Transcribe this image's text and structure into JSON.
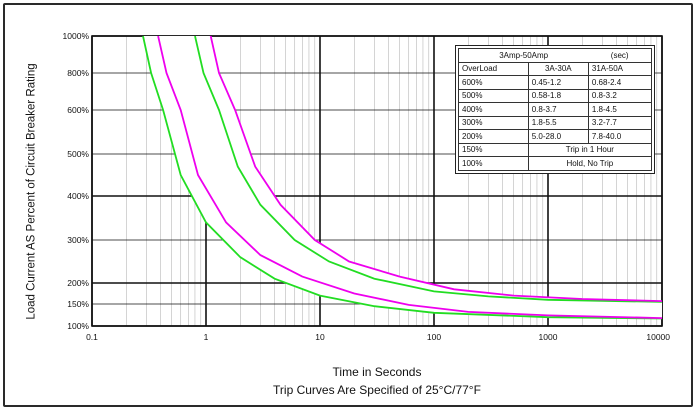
{
  "chart_data": {
    "type": "line",
    "xlabel": "Time in Seconds",
    "ylabel": "Load Current AS Percent of Circuit Breaker Rating",
    "footnote": "Trip Curves Are Specified of 25°C/77°F",
    "x_scale": "log",
    "xlim": [
      0.1,
      10000
    ],
    "x_ticks": [
      "0.1",
      "1",
      "10",
      "100",
      "1000",
      "10000"
    ],
    "ylim": [
      100,
      1000
    ],
    "y_ticks": [
      "1000%",
      "800%",
      "600%",
      "500%",
      "400%",
      "300%",
      "200%",
      "150%",
      "100%"
    ],
    "grid": true,
    "series": [
      {
        "color": "#22dd22",
        "points": [
          [
            0.28,
            1000
          ],
          [
            0.33,
            800
          ],
          [
            0.42,
            600
          ],
          [
            0.6,
            450
          ],
          [
            1.0,
            340
          ],
          [
            2.0,
            260
          ],
          [
            4.0,
            210
          ],
          [
            10,
            170
          ],
          [
            30,
            145
          ],
          [
            100,
            130
          ],
          [
            1000,
            120
          ],
          [
            10000,
            117
          ]
        ]
      },
      {
        "color": "#ee00ee",
        "points": [
          [
            0.38,
            1000
          ],
          [
            0.45,
            800
          ],
          [
            0.6,
            600
          ],
          [
            0.85,
            450
          ],
          [
            1.5,
            340
          ],
          [
            3.0,
            265
          ],
          [
            7.0,
            215
          ],
          [
            20,
            175
          ],
          [
            60,
            148
          ],
          [
            200,
            132
          ],
          [
            1000,
            124
          ],
          [
            10000,
            118
          ]
        ]
      },
      {
        "color": "#22dd22",
        "points": [
          [
            0.8,
            1000
          ],
          [
            0.95,
            800
          ],
          [
            1.3,
            600
          ],
          [
            1.9,
            470
          ],
          [
            3.0,
            380
          ],
          [
            6.0,
            300
          ],
          [
            12,
            250
          ],
          [
            30,
            210
          ],
          [
            100,
            180
          ],
          [
            300,
            168
          ],
          [
            1000,
            160
          ],
          [
            10000,
            155
          ]
        ]
      },
      {
        "color": "#ee00ee",
        "points": [
          [
            1.1,
            1000
          ],
          [
            1.3,
            800
          ],
          [
            1.8,
            600
          ],
          [
            2.7,
            470
          ],
          [
            4.5,
            380
          ],
          [
            9.0,
            300
          ],
          [
            18,
            250
          ],
          [
            50,
            215
          ],
          [
            150,
            185
          ],
          [
            500,
            170
          ],
          [
            2000,
            162
          ],
          [
            10000,
            157
          ]
        ]
      }
    ]
  },
  "legend": {
    "title": "3Amp-50Amp",
    "unit": "(sec)",
    "header": [
      "OverLoad",
      "3A-30A",
      "31A-50A"
    ],
    "rows": [
      [
        "600%",
        "0.45-1.2",
        "0.68-2.4"
      ],
      [
        "500%",
        "0.58-1.8",
        "0.8-3.2"
      ],
      [
        "400%",
        "0.8-3.7",
        "1.8-4.5"
      ],
      [
        "300%",
        "1.8-5.5",
        "3.2-7.7"
      ],
      [
        "200%",
        "5.0-28.0",
        "7.8-40.0"
      ]
    ],
    "span_rows": [
      [
        "150%",
        "Trip in 1 Hour"
      ],
      [
        "100%",
        "Hold, No Trip"
      ]
    ]
  }
}
